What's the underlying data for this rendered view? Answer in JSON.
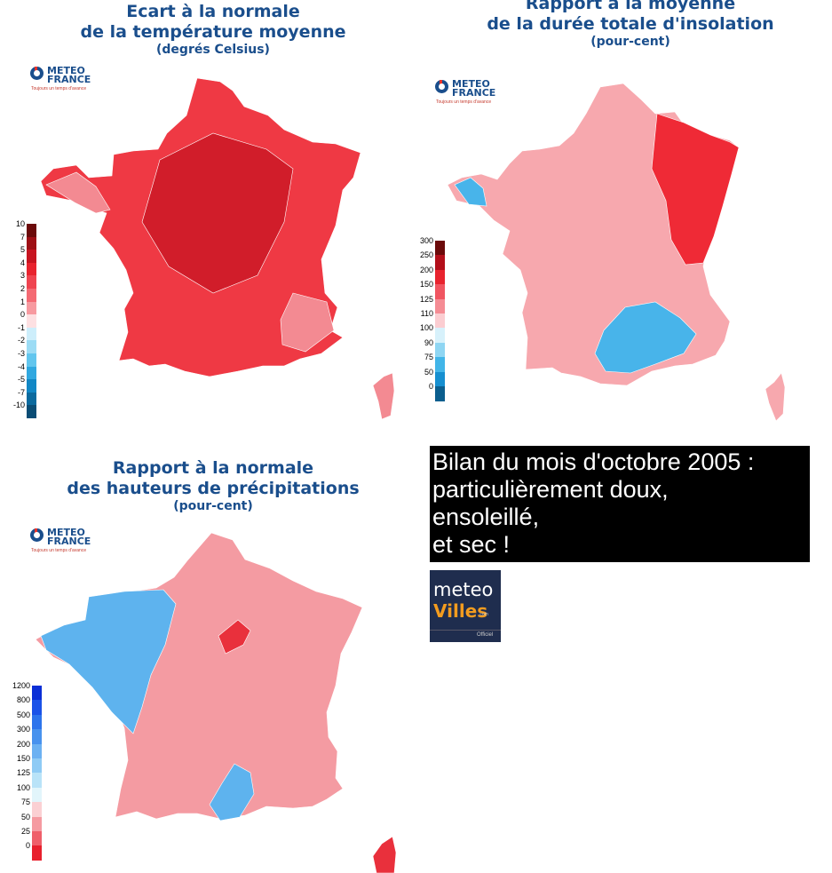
{
  "maps": [
    {
      "id": "temperature",
      "title_line1": "Ecart à la normale",
      "title_line2": "de la température moyenne",
      "subtitle": "(degrés Celsius)",
      "logo": {
        "line1": "METEO",
        "line2": "FRANCE",
        "tagline": "Toujours un temps d'avance"
      },
      "legend": {
        "labels": [
          "10",
          "7",
          "5",
          "4",
          "3",
          "2",
          "1",
          "0",
          "-1",
          "-2",
          "-3",
          "-4",
          "-5",
          "-7",
          "-10"
        ],
        "colors": [
          "#6b0a0a",
          "#9e0f15",
          "#c71420",
          "#e8232e",
          "#ef4450",
          "#f46a73",
          "#f79aa0",
          "#fde0e2",
          "#cdeefb",
          "#9cdcf5",
          "#62c6ee",
          "#30a8e0",
          "#1187c5",
          "#0b6a9e",
          "#0a4d75"
        ]
      },
      "fill_main": "#ef3944",
      "fill_dark": "#d11d2a",
      "fill_light": "#f38a92"
    },
    {
      "id": "sunshine",
      "title_line1": "Rapport à la moyenne",
      "title_line2": "de la durée totale d'insolation",
      "subtitle": "(pour-cent)",
      "logo": {
        "line1": "METEO",
        "line2": "FRANCE",
        "tagline": "Toujours un temps d'avance"
      },
      "legend": {
        "labels": [
          "300",
          "250",
          "200",
          "150",
          "125",
          "110",
          "100",
          "90",
          "75",
          "50",
          "0"
        ],
        "colors": [
          "#6b0a0a",
          "#b30f1a",
          "#e8232e",
          "#f05561",
          "#f58c94",
          "#fbcdd1",
          "#d7f1fb",
          "#8fd6f3",
          "#42b5e8",
          "#168fd0",
          "#0b5e8e"
        ]
      },
      "fill_main": "#f7a8ae",
      "fill_dark": "#ef2a36",
      "fill_light": "#fcd5d8",
      "fill_blue": "#48b4ea"
    },
    {
      "id": "precipitation",
      "title_line1": "Rapport à la normale",
      "title_line2": "des hauteurs de précipitations",
      "subtitle": "(pour-cent)",
      "logo": {
        "line1": "METEO",
        "line2": "FRANCE",
        "tagline": "Toujours un temps d'avance"
      },
      "legend": {
        "labels": [
          "1200",
          "800",
          "500",
          "300",
          "200",
          "150",
          "125",
          "100",
          "75",
          "50",
          "25",
          "0"
        ],
        "colors": [
          "#0b2fd6",
          "#1a52e8",
          "#2d74ec",
          "#4892ee",
          "#6cb1f2",
          "#8fcbf5",
          "#b9e3f8",
          "#e2f5fb",
          "#fbd0d3",
          "#f59aa1",
          "#ef5f6a",
          "#e8202d"
        ]
      },
      "fill_main": "#f49ba2",
      "fill_dark": "#e9303c",
      "fill_light": "#fbd3d6",
      "fill_blue": "#5eb3ee"
    }
  ],
  "headline": {
    "line1": "Bilan du mois d'octobre 2005 :",
    "line2": "particulièrement doux,",
    "line3": "ensoleillé,",
    "line4": "et sec !"
  },
  "meteovilles": {
    "word1": "meteo",
    "word2": "Villes",
    "suffix": ".com",
    "badge": "Officiel"
  }
}
